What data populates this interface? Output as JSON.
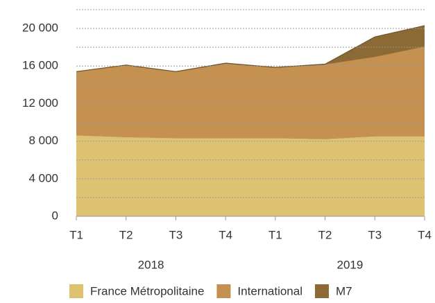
{
  "chart_data": {
    "type": "stacked_area",
    "categories": [
      "T1",
      "T2",
      "T3",
      "T4",
      "T1",
      "T2",
      "T3",
      "T4"
    ],
    "x_groups": [
      "2018",
      "2019"
    ],
    "series": [
      {
        "name": "France Métropolitaine",
        "color": "#ddc272",
        "values": [
          8600,
          8400,
          8300,
          8300,
          8300,
          8200,
          8500,
          8500
        ]
      },
      {
        "name": "International",
        "color": "#c49151",
        "values": [
          6800,
          7700,
          7100,
          8000,
          7550,
          8000,
          8500,
          9600
        ]
      },
      {
        "name": "M7",
        "color": "#8c6a36",
        "values": [
          0,
          0,
          0,
          0,
          0,
          0,
          2100,
          2200
        ]
      }
    ],
    "ylim": [
      0,
      22000
    ],
    "yticks": [
      0,
      {
        "value": 4000,
        "label": "4 000"
      },
      {
        "value": 8000,
        "label": "8 000"
      },
      {
        "value": 12000,
        "label": "12 000"
      },
      {
        "value": 16000,
        "label": "16 000"
      },
      {
        "value": 20000,
        "label": "20 000"
      }
    ],
    "minor_yticks": [
      2000,
      6000,
      10000,
      14000,
      18000,
      22000
    ],
    "grid": true,
    "legend": "bottom"
  }
}
